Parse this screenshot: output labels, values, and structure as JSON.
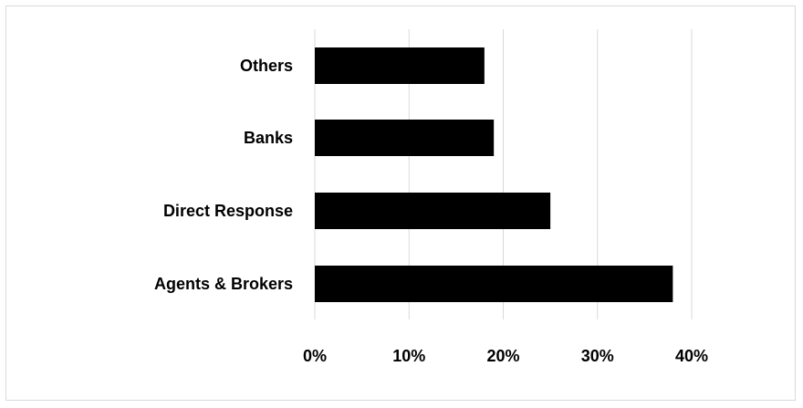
{
  "chart_data": {
    "type": "bar",
    "orientation": "horizontal",
    "categories": [
      "Agents & Brokers",
      "Direct Response",
      "Banks",
      "Others"
    ],
    "values": [
      38,
      25,
      19,
      18
    ],
    "unit": "%",
    "xlim": [
      0,
      40
    ],
    "ticks": [
      "0%",
      "10%",
      "20%",
      "30%",
      "40%"
    ],
    "title": "",
    "xlabel": "",
    "ylabel": "",
    "grid": "vertical",
    "legend": "none",
    "bar_color": "#000000",
    "grid_color": "#d9d9d9"
  }
}
